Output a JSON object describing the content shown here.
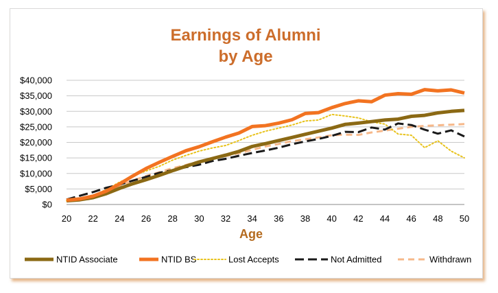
{
  "colors": {
    "title": "#cc6d2b",
    "axis_title": "#b46a1e",
    "gridline": "#c8c8c8",
    "axis_line": "#888888"
  },
  "chart_data": {
    "type": "line",
    "title_lines": [
      "Earnings of Alumni",
      "by Age"
    ],
    "xlabel": "Age",
    "ylabel": "",
    "xlim": [
      20,
      50
    ],
    "ylim": [
      0,
      40000
    ],
    "x_ticks": [
      "20",
      "22",
      "24",
      "26",
      "28",
      "30",
      "32",
      "34",
      "36",
      "38",
      "40",
      "42",
      "44",
      "46",
      "48",
      "50"
    ],
    "y_ticks": [
      "$0",
      "$5,000",
      "$10,000",
      "$15,000",
      "$20,000",
      "$25,000",
      "$30,000",
      "$35,000",
      "$40,000"
    ],
    "grid": "horizontal",
    "legend_position": "bottom",
    "x": [
      20,
      21,
      22,
      23,
      24,
      25,
      26,
      27,
      28,
      29,
      30,
      31,
      32,
      33,
      34,
      35,
      36,
      37,
      38,
      39,
      40,
      41,
      42,
      43,
      44,
      45,
      46,
      47,
      48,
      49,
      50
    ],
    "series": [
      {
        "name": "NTID Associate",
        "color": "#8b6914",
        "style": "solid",
        "width": 5,
        "values": [
          1200,
          1500,
          2200,
          3500,
          5200,
          6700,
          8000,
          9400,
          10900,
          12300,
          13700,
          14800,
          15900,
          17100,
          18700,
          19600,
          20600,
          21600,
          22600,
          23600,
          24600,
          25800,
          26200,
          26700,
          27200,
          27500,
          28400,
          28700,
          29500,
          30000,
          30300
        ]
      },
      {
        "name": "NTID BS",
        "color": "#f27321",
        "style": "solid",
        "width": 5,
        "values": [
          1400,
          1800,
          2700,
          4300,
          6600,
          9200,
          11600,
          13600,
          15500,
          17300,
          18600,
          20200,
          21700,
          23000,
          25100,
          25400,
          26200,
          27300,
          29300,
          29600,
          31200,
          32500,
          33400,
          33100,
          35200,
          35700,
          35500,
          37000,
          36600,
          36900,
          35900
        ]
      },
      {
        "name": "Lost Accepts",
        "color": "#e8c21a",
        "style": "dotted",
        "width": 2,
        "values": [
          1200,
          1800,
          2900,
          4800,
          7200,
          9200,
          10800,
          12300,
          14300,
          15800,
          17200,
          18200,
          19000,
          20600,
          22300,
          23600,
          24600,
          25600,
          26900,
          27200,
          29000,
          28500,
          27900,
          26600,
          25900,
          22700,
          22300,
          18300,
          20500,
          17200,
          15000
        ]
      },
      {
        "name": "Not Admitted",
        "color": "#1a1a1a",
        "style": "longdash",
        "width": 3,
        "values": [
          1600,
          2800,
          4000,
          5400,
          6400,
          7700,
          8900,
          10200,
          11100,
          12000,
          12800,
          14000,
          14700,
          15700,
          16600,
          17400,
          18300,
          19400,
          20300,
          21100,
          22100,
          23400,
          23300,
          24800,
          24100,
          26100,
          25600,
          24100,
          22800,
          23900,
          21900
        ]
      },
      {
        "name": "Withdrawn",
        "color": "#f6b88a",
        "style": "dashed",
        "width": 3,
        "values": [
          1300,
          1900,
          2900,
          4400,
          6100,
          7700,
          9200,
          10400,
          11700,
          12700,
          13900,
          14800,
          15600,
          16500,
          17600,
          18700,
          19500,
          20400,
          21000,
          21600,
          22300,
          22500,
          22400,
          23200,
          23800,
          24400,
          25000,
          25300,
          25500,
          25700,
          25900
        ]
      }
    ]
  }
}
